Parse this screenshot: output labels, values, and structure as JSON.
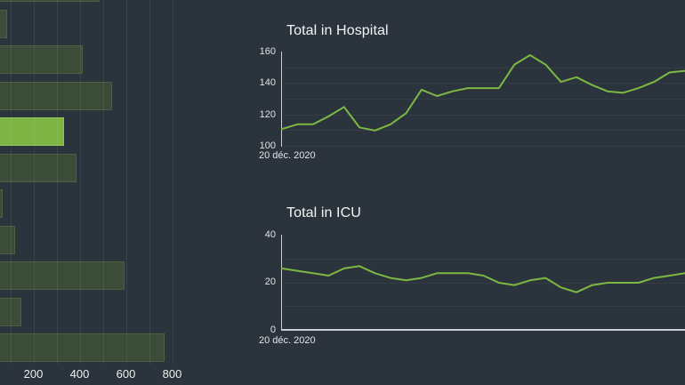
{
  "theme": {
    "background": "#2b343c",
    "line_green": "#7db843",
    "bar_dark_green": "#3b4d39",
    "bar_highlight_green": "#7eb444",
    "axis_line_color": "#c9ced2",
    "text_color": "#f4f6f6",
    "axis_text_color": "#e2e5e5"
  },
  "chart_data": [
    {
      "name": "admissions-bar-chart",
      "type": "bar",
      "orientation": "horizontal",
      "note": "cropped at left edge of screen; category labels not visible",
      "x_ticks": [
        "200",
        "400",
        "600",
        "800"
      ],
      "x_tick_values": [
        200,
        400,
        600,
        800
      ],
      "xlim": [
        0,
        880
      ],
      "grid": true,
      "values": [
        488,
        87,
        413,
        540,
        333,
        387,
        69,
        121,
        594,
        148,
        767
      ],
      "highlighted_index": 4
    },
    {
      "name": "total-in-hospital",
      "type": "line",
      "title": "Total in Hospital",
      "x_start_label": "20 déc. 2020",
      "y_ticks": [
        "100",
        "120",
        "140",
        "160"
      ],
      "y_tick_values": [
        100,
        120,
        140,
        160
      ],
      "ylim": [
        100,
        160
      ],
      "grid": true,
      "values": [
        111,
        114,
        114,
        119,
        125,
        112,
        110,
        114,
        121,
        136,
        132,
        135,
        137,
        137,
        137,
        152,
        158,
        152,
        141,
        144,
        139,
        135,
        134,
        137,
        141,
        147,
        148
      ]
    },
    {
      "name": "total-in-icu",
      "type": "line",
      "title": "Total in ICU",
      "x_start_label": "20 déc. 2020",
      "y_ticks": [
        "0",
        "20",
        "40"
      ],
      "y_tick_values": [
        0,
        20,
        40
      ],
      "ylim": [
        0,
        40
      ],
      "grid": true,
      "values": [
        26,
        25,
        24,
        23,
        26,
        27,
        24,
        22,
        21,
        22,
        24,
        24,
        24,
        23,
        20,
        19,
        21,
        22,
        18,
        16,
        19,
        20,
        20,
        20,
        22,
        23,
        24
      ]
    }
  ]
}
